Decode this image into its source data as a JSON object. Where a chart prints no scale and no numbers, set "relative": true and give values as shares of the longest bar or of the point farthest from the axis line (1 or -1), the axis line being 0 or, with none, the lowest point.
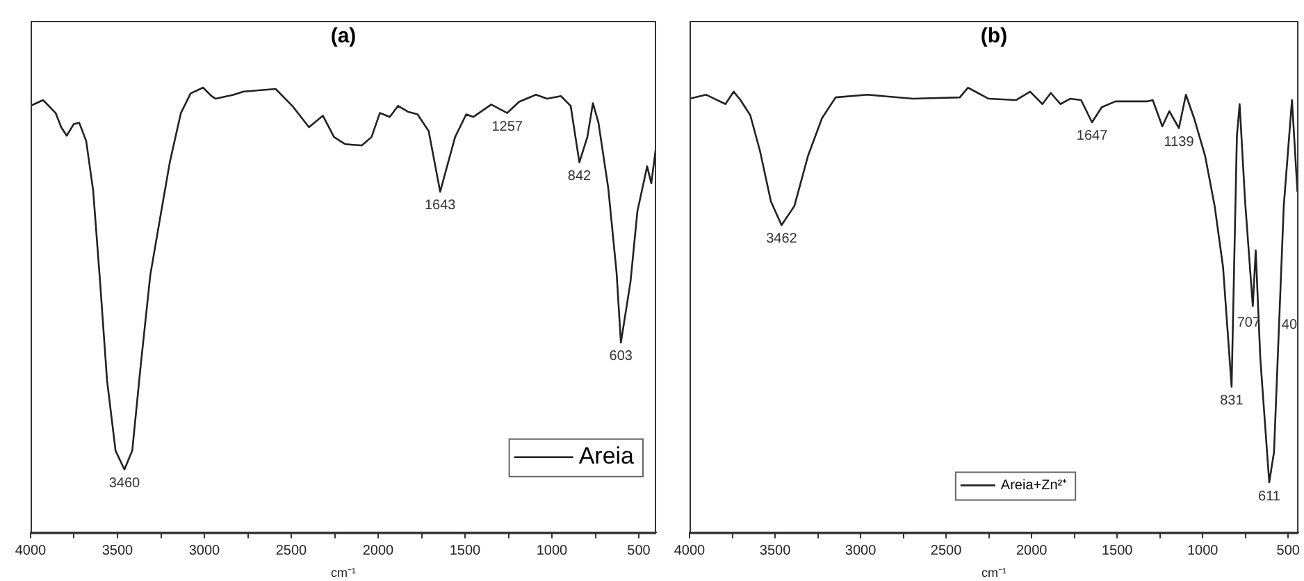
{
  "chart_data": [
    {
      "type": "line",
      "title": "(a)",
      "xlabel": "cm⁻¹",
      "relative": true,
      "legend": "bottom right",
      "xlim": [
        4000,
        400
      ],
      "xticks": [
        4000,
        {
          "value": 3750,
          "label": null
        },
        3500,
        {
          "value": 3250,
          "label": null
        },
        3000,
        {
          "value": 2750,
          "label": null
        },
        2500,
        {
          "value": 2250,
          "label": null
        },
        2000,
        {
          "value": 1750,
          "label": null
        },
        1500,
        {
          "value": 1250,
          "label": null
        },
        1000,
        {
          "value": 750,
          "label": null
        },
        500
      ],
      "series": [
        {
          "name": "Areia",
          "color": "#222222",
          "x": [
            4000,
            3928,
            3856,
            3824,
            3792,
            3752,
            3720,
            3680,
            3640,
            3600,
            3560,
            3511,
            3460,
            3415,
            3367,
            3311,
            3255,
            3199,
            3135,
            3079,
            3007,
            2959,
            2935,
            2830,
            2775,
            2590,
            2494,
            2398,
            2318,
            2254,
            2190,
            2094,
            2038,
            1990,
            1933,
            1885,
            1829,
            1773,
            1709,
            1643,
            1597,
            1557,
            1493,
            1453,
            1349,
            1257,
            1189,
            1092,
            1028,
            948,
            892,
            842,
            796,
            764,
            732,
            676,
            628,
            603,
            548,
            508,
            452,
            428,
            400
          ],
          "values": [
            0.959,
            0.972,
            0.943,
            0.911,
            0.892,
            0.918,
            0.921,
            0.88,
            0.769,
            0.563,
            0.342,
            0.184,
            0.142,
            0.184,
            0.373,
            0.579,
            0.706,
            0.832,
            0.943,
            0.987,
            1.0,
            0.981,
            0.975,
            0.984,
            0.991,
            0.997,
            0.959,
            0.911,
            0.937,
            0.889,
            0.873,
            0.87,
            0.889,
            0.943,
            0.934,
            0.959,
            0.946,
            0.94,
            0.902,
            0.766,
            0.832,
            0.889,
            0.94,
            0.934,
            0.962,
            0.943,
            0.968,
            0.984,
            0.975,
            0.981,
            0.959,
            0.832,
            0.889,
            0.965,
            0.921,
            0.775,
            0.585,
            0.427,
            0.563,
            0.722,
            0.823,
            0.785,
            0.87
          ]
        }
      ],
      "annotations": [
        {
          "text": "3460",
          "x": 3460,
          "y": 0.142
        },
        {
          "text": "1643",
          "x": 1643,
          "y": 0.766
        },
        {
          "text": "1257",
          "x": 1257,
          "y": 0.943
        },
        {
          "text": "842",
          "x": 842,
          "y": 0.832
        },
        {
          "text": "603",
          "x": 603,
          "y": 0.427
        }
      ]
    },
    {
      "type": "line",
      "title": "(b)",
      "xlabel": "cm⁻¹",
      "relative": true,
      "legend": "bottom",
      "xlim": [
        4000,
        440
      ],
      "xticks": [
        4000,
        {
          "value": 3750,
          "label": null
        },
        3500,
        {
          "value": 3250,
          "label": null
        },
        3000,
        {
          "value": 2750,
          "label": null
        },
        2500,
        {
          "value": 2250,
          "label": null
        },
        2000,
        {
          "value": 1750,
          "label": null
        },
        1500,
        {
          "value": 1250,
          "label": null
        },
        1000,
        {
          "value": 750,
          "label": null
        },
        500
      ],
      "series": [
        {
          "name": "Areia+Zn²⁺",
          "color": "#222222",
          "x": [
            4000,
            3903,
            3790,
            3742,
            3702,
            3645,
            3589,
            3524,
            3462,
            3387,
            3307,
            3226,
            3146,
            2960,
            2694,
            2420,
            2372,
            2315,
            2251,
            2090,
            2009,
            1937,
            1888,
            1832,
            1775,
            1711,
            1647,
            1590,
            1510,
            1324,
            1292,
            1236,
            1195,
            1139,
            1098,
            1050,
            986,
            930,
            881,
            831,
            800,
            784,
            752,
            707,
            690,
            663,
            611,
            583,
            526,
            478,
            446
          ],
          "values": [
            0.975,
            0.984,
            0.963,
            0.991,
            0.972,
            0.938,
            0.859,
            0.744,
            0.691,
            0.734,
            0.847,
            0.931,
            0.978,
            0.984,
            0.975,
            0.978,
            1.0,
            0.988,
            0.975,
            0.972,
            0.991,
            0.963,
            0.988,
            0.963,
            0.975,
            0.972,
            0.922,
            0.956,
            0.969,
            0.969,
            0.972,
            0.913,
            0.947,
            0.909,
            0.984,
            0.931,
            0.847,
            0.734,
            0.597,
            0.328,
            0.891,
            0.963,
            0.744,
            0.509,
            0.634,
            0.391,
            0.113,
            0.181,
            0.734,
            0.972,
            0.766
          ]
        }
      ],
      "annotations": [
        {
          "text": "3462",
          "x": 3462,
          "y": 0.691
        },
        {
          "text": "1647",
          "x": 1647,
          "y": 0.922
        },
        {
          "text": "1139",
          "x": 1139,
          "y": 0.909
        },
        {
          "text": "831",
          "x": 831,
          "y": 0.328
        },
        {
          "text": "707",
          "x": 707,
          "y": 0.509
        },
        {
          "text": "611",
          "x": 611,
          "y": 0.113
        },
        "40"
      ]
    }
  ]
}
